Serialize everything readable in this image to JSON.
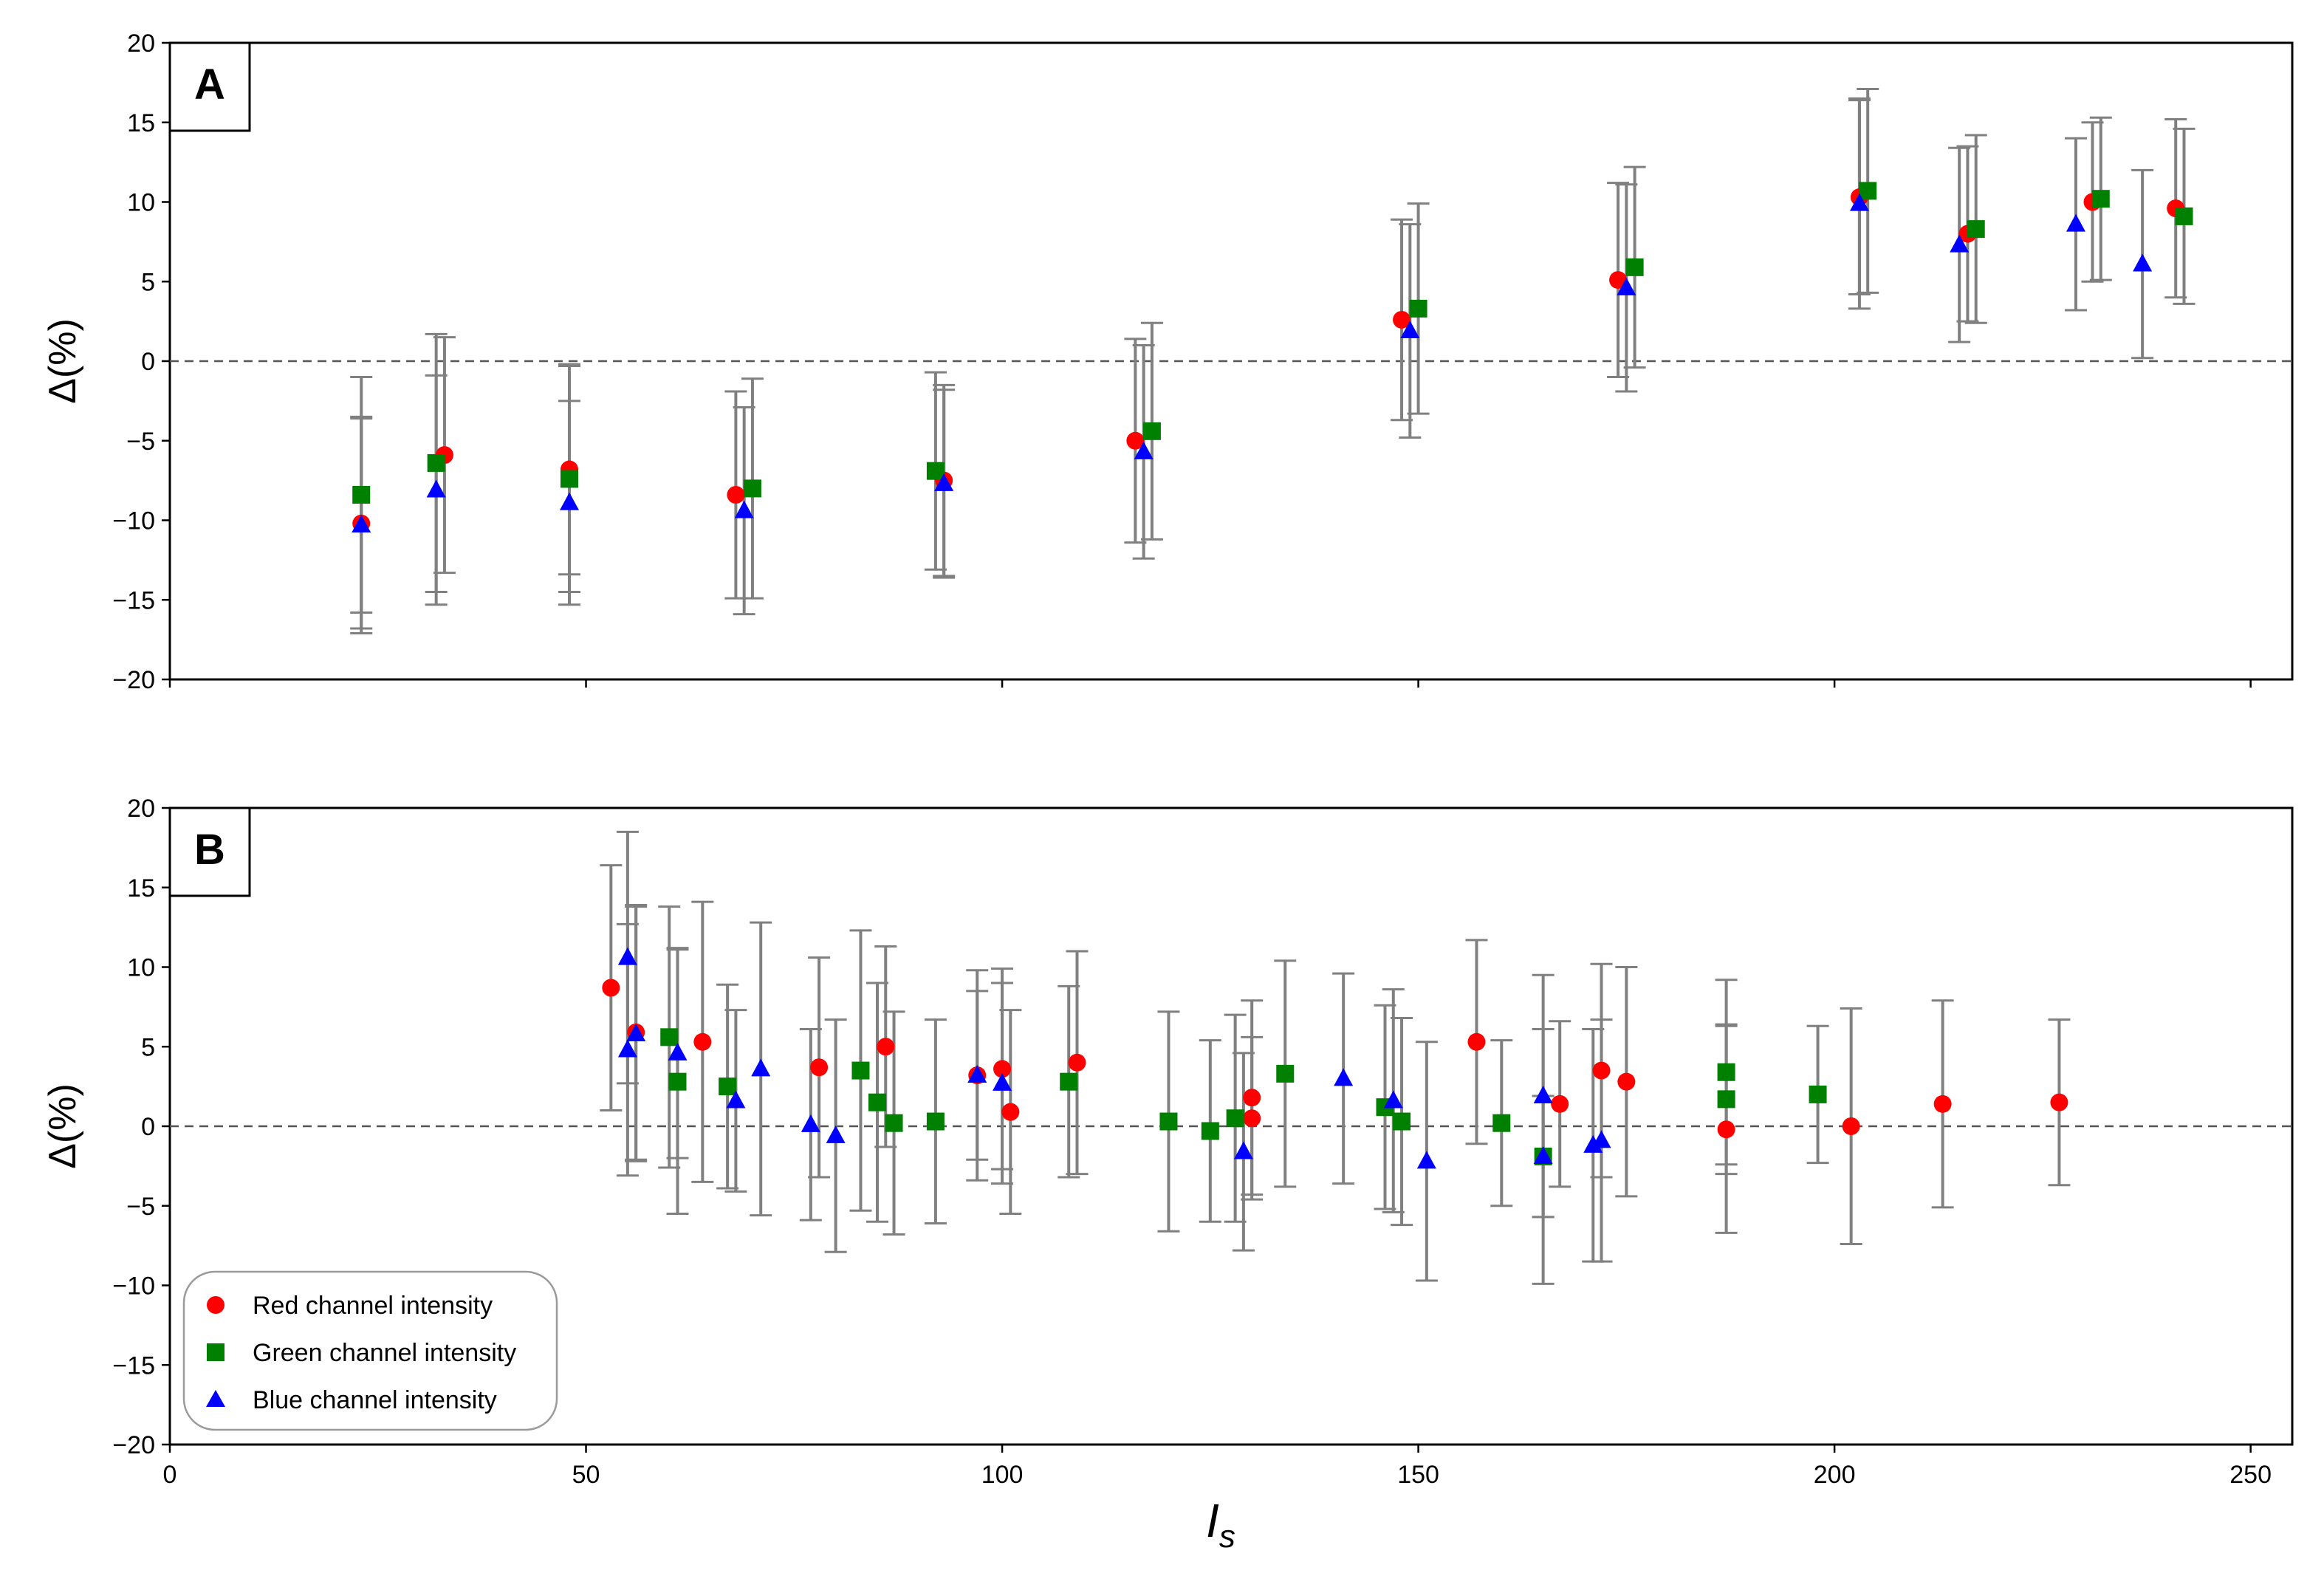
{
  "chart_data": [
    {
      "panel": "A",
      "type": "scatter",
      "error_bars": true,
      "ylabel": "Δ(%)",
      "xlim": [
        0,
        255
      ],
      "ylim": [
        -20,
        20
      ],
      "xticks": [
        0,
        50,
        100,
        150,
        200,
        250
      ],
      "yticks": [
        -20,
        -15,
        -10,
        -5,
        0,
        5,
        10,
        15,
        20
      ],
      "reference_line_y": 0,
      "series": [
        {
          "name": "Red channel intensity",
          "color": "#ff0000",
          "marker": "circle",
          "points": [
            {
              "x": 23,
              "y": -10.2,
              "err": 6.6
            },
            {
              "x": 33,
              "y": -5.9,
              "err": 7.4
            },
            {
              "x": 48,
              "y": -6.8,
              "err": 6.6
            },
            {
              "x": 68,
              "y": -8.4,
              "err": 6.5
            },
            {
              "x": 93,
              "y": -7.5,
              "err": 6.0
            },
            {
              "x": 116,
              "y": -5.0,
              "err": 6.4
            },
            {
              "x": 148,
              "y": 2.6,
              "err": 6.3
            },
            {
              "x": 174,
              "y": 5.1,
              "err": 6.1
            },
            {
              "x": 203,
              "y": 10.3,
              "err": 6.1
            },
            {
              "x": 216,
              "y": 8.0,
              "err": 5.5
            },
            {
              "x": 231,
              "y": 10.0,
              "err": 5.0
            },
            {
              "x": 241,
              "y": 9.6,
              "err": 5.6
            }
          ]
        },
        {
          "name": "Green channel intensity",
          "color": "#008000",
          "marker": "square",
          "points": [
            {
              "x": 23,
              "y": -8.4,
              "err": 7.4
            },
            {
              "x": 32,
              "y": -6.4,
              "err": 8.1
            },
            {
              "x": 48,
              "y": -7.4,
              "err": 7.1
            },
            {
              "x": 70,
              "y": -8.0,
              "err": 6.9
            },
            {
              "x": 92,
              "y": -6.9,
              "err": 6.2
            },
            {
              "x": 118,
              "y": -4.4,
              "err": 6.8
            },
            {
              "x": 150,
              "y": 3.3,
              "err": 6.6
            },
            {
              "x": 176,
              "y": 5.9,
              "err": 6.3
            },
            {
              "x": 204,
              "y": 10.7,
              "err": 6.4
            },
            {
              "x": 217,
              "y": 8.3,
              "err": 5.9
            },
            {
              "x": 232,
              "y": 10.2,
              "err": 5.1
            },
            {
              "x": 242,
              "y": 9.1,
              "err": 5.5
            }
          ]
        },
        {
          "name": "Blue channel intensity",
          "color": "#0000ff",
          "marker": "triangle",
          "points": [
            {
              "x": 23,
              "y": -10.3,
              "err": 6.8
            },
            {
              "x": 32,
              "y": -8.1,
              "err": 7.2
            },
            {
              "x": 48,
              "y": -8.9,
              "err": 6.4
            },
            {
              "x": 69,
              "y": -9.4,
              "err": 6.5
            },
            {
              "x": 93,
              "y": -7.7,
              "err": 5.9
            },
            {
              "x": 117,
              "y": -5.7,
              "err": 6.7
            },
            {
              "x": 149,
              "y": 1.9,
              "err": 6.7
            },
            {
              "x": 175,
              "y": 4.6,
              "err": 6.5
            },
            {
              "x": 203,
              "y": 9.9,
              "err": 6.6
            },
            {
              "x": 215,
              "y": 7.3,
              "err": 6.1
            },
            {
              "x": 229,
              "y": 8.6,
              "err": 5.4
            },
            {
              "x": 237,
              "y": 6.1,
              "err": 5.9
            }
          ]
        }
      ]
    },
    {
      "panel": "B",
      "type": "scatter",
      "error_bars": true,
      "xlabel": "I_s",
      "ylabel": "Δ(%)",
      "xlim": [
        0,
        255
      ],
      "ylim": [
        -20,
        20
      ],
      "xticks": [
        0,
        50,
        100,
        150,
        200,
        250
      ],
      "yticks": [
        -20,
        -15,
        -10,
        -5,
        0,
        5,
        10,
        15,
        20
      ],
      "reference_line_y": 0,
      "legend": "bottom-left",
      "series": [
        {
          "name": "Red channel intensity",
          "color": "#ff0000",
          "marker": "circle",
          "points": [
            {
              "x": 53,
              "y": 8.7,
              "err": 7.7
            },
            {
              "x": 56,
              "y": 5.9,
              "err": 8.0
            },
            {
              "x": 64,
              "y": 5.3,
              "err": 8.8
            },
            {
              "x": 78,
              "y": 3.7,
              "err": 6.9
            },
            {
              "x": 86,
              "y": 5.0,
              "err": 6.3
            },
            {
              "x": 97,
              "y": 3.2,
              "err": 6.6
            },
            {
              "x": 100,
              "y": 3.6,
              "err": 6.3
            },
            {
              "x": 101,
              "y": 0.9,
              "err": 6.4
            },
            {
              "x": 109,
              "y": 4.0,
              "err": 7.0
            },
            {
              "x": 130,
              "y": 1.8,
              "err": 6.1
            },
            {
              "x": 130,
              "y": 0.5,
              "err": 5.1
            },
            {
              "x": 157,
              "y": 5.3,
              "err": 6.4
            },
            {
              "x": 167,
              "y": 1.4,
              "err": 5.2
            },
            {
              "x": 172,
              "y": 3.5,
              "err": 6.7
            },
            {
              "x": 175,
              "y": 2.8,
              "err": 7.2
            },
            {
              "x": 187,
              "y": -0.2,
              "err": 6.5
            },
            {
              "x": 202,
              "y": 0.0,
              "err": 7.4
            },
            {
              "x": 213,
              "y": 1.4,
              "err": 6.5
            },
            {
              "x": 227,
              "y": 1.5,
              "err": 5.2
            }
          ]
        },
        {
          "name": "Green channel intensity",
          "color": "#008000",
          "marker": "square",
          "points": [
            {
              "x": 60,
              "y": 5.6,
              "err": 8.2
            },
            {
              "x": 61,
              "y": 2.8,
              "err": 8.3
            },
            {
              "x": 67,
              "y": 2.5,
              "err": 6.4
            },
            {
              "x": 83,
              "y": 3.5,
              "err": 8.8
            },
            {
              "x": 85,
              "y": 1.5,
              "err": 7.5
            },
            {
              "x": 87,
              "y": 0.2,
              "err": 7.0
            },
            {
              "x": 92,
              "y": 0.3,
              "err": 6.4
            },
            {
              "x": 108,
              "y": 2.8,
              "err": 6.0
            },
            {
              "x": 120,
              "y": 0.3,
              "err": 6.9
            },
            {
              "x": 125,
              "y": -0.3,
              "err": 5.7
            },
            {
              "x": 128,
              "y": 0.5,
              "err": 6.5
            },
            {
              "x": 134,
              "y": 3.3,
              "err": 7.1
            },
            {
              "x": 146,
              "y": 1.2,
              "err": 6.4
            },
            {
              "x": 148,
              "y": 0.3,
              "err": 6.5
            },
            {
              "x": 160,
              "y": 0.2,
              "err": 5.2
            },
            {
              "x": 165,
              "y": -1.9,
              "err": 3.8
            },
            {
              "x": 187,
              "y": 3.4,
              "err": 5.8
            },
            {
              "x": 187,
              "y": 1.7,
              "err": 4.7
            },
            {
              "x": 198,
              "y": 2.0,
              "err": 4.3
            }
          ]
        },
        {
          "name": "Blue channel intensity",
          "color": "#0000ff",
          "marker": "triangle",
          "points": [
            {
              "x": 55,
              "y": 10.6,
              "err": 7.9
            },
            {
              "x": 55,
              "y": 4.8,
              "err": 7.9
            },
            {
              "x": 56,
              "y": 5.8,
              "err": 8.0
            },
            {
              "x": 61,
              "y": 4.6,
              "err": 6.6
            },
            {
              "x": 68,
              "y": 1.6,
              "err": 5.7
            },
            {
              "x": 71,
              "y": 3.6,
              "err": 9.2
            },
            {
              "x": 77,
              "y": 0.1,
              "err": 6.0
            },
            {
              "x": 80,
              "y": -0.6,
              "err": 7.3
            },
            {
              "x": 97,
              "y": 3.2,
              "err": 5.3
            },
            {
              "x": 100,
              "y": 2.7,
              "err": 6.3
            },
            {
              "x": 129,
              "y": -1.6,
              "err": 6.2
            },
            {
              "x": 141,
              "y": 3.0,
              "err": 6.6
            },
            {
              "x": 147,
              "y": 1.6,
              "err": 7.0
            },
            {
              "x": 151,
              "y": -2.2,
              "err": 7.5
            },
            {
              "x": 165,
              "y": 1.9,
              "err": 7.6
            },
            {
              "x": 165,
              "y": -1.9,
              "err": 8.0
            },
            {
              "x": 171,
              "y": -1.2,
              "err": 7.3
            },
            {
              "x": 172,
              "y": -0.9,
              "err": 7.6
            }
          ]
        }
      ]
    }
  ]
}
